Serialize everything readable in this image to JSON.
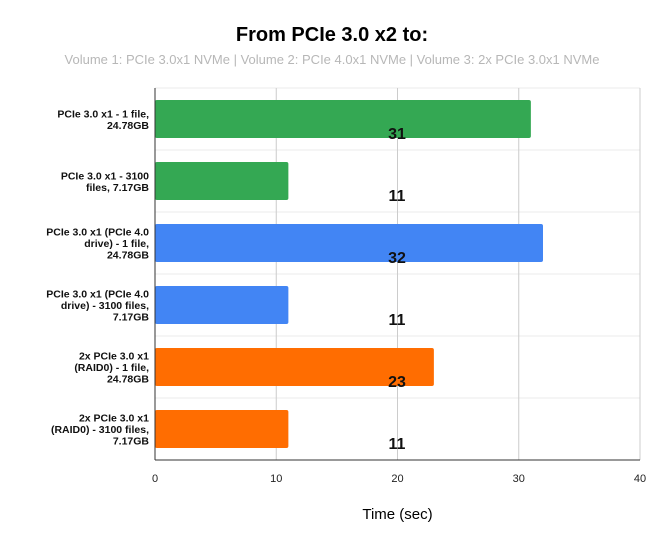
{
  "chart_data": {
    "type": "bar",
    "orientation": "horizontal",
    "title": "From PCIe 3.0 x2 to:",
    "subtitle": "Volume 1: PCIe 3.0x1 NVMe | Volume 2: PCIe 4.0x1 NVMe | Volume 3: 2x PCIe 3.0x1 NVMe",
    "xlabel": "Time (sec)",
    "ylabel": "",
    "xlim": [
      0,
      40
    ],
    "xticks": [
      "0",
      "10",
      "20",
      "30",
      "40"
    ],
    "grid": true,
    "categories": [
      [
        "PCIe 3.0 x1 - 1 file,",
        "24.78GB"
      ],
      [
        "PCIe 3.0 x1 - 3100",
        "files, 7.17GB"
      ],
      [
        "PCIe 3.0 x1 (PCIe 4.0",
        "drive) - 1 file,",
        "24.78GB"
      ],
      [
        "PCIe 3.0 x1 (PCIe 4.0",
        "drive) - 3100 files,",
        "7.17GB"
      ],
      [
        "2x PCIe 3.0 x1",
        "(RAID0) - 1 file,",
        "24.78GB"
      ],
      [
        "2x PCIe 3.0 x1",
        "(RAID0) - 3100 files,",
        "7.17GB"
      ]
    ],
    "values": [
      31,
      11,
      32,
      11,
      23,
      11
    ],
    "data_labels": [
      "31",
      "11",
      "32",
      "11",
      "23",
      "11"
    ],
    "colors": [
      "#34a853",
      "#34a853",
      "#4285f4",
      "#4285f4",
      "#ff6d01",
      "#ff6d01"
    ]
  }
}
